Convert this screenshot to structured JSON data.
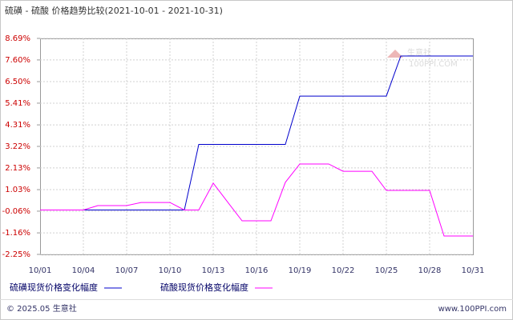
{
  "chart_data": {
    "type": "line",
    "title": "硫磺 - 硫酸 价格趋势比较(2021-10-01 - 2021-10-31)",
    "categories": [
      "10/01",
      null,
      null,
      "10/04",
      null,
      null,
      "10/07",
      null,
      null,
      "10/10",
      null,
      null,
      "10/13",
      null,
      null,
      "10/16",
      null,
      null,
      "10/19",
      null,
      null,
      "10/22",
      null,
      null,
      "10/25",
      null,
      null,
      "10/28",
      null,
      null,
      "10/31"
    ],
    "series": [
      {
        "name": "硫磺现货价格变化幅度",
        "color": "#0000cc",
        "values": [
          0,
          0,
          0,
          0,
          0,
          0,
          0,
          0,
          0,
          0,
          0,
          3.32,
          3.32,
          3.32,
          3.32,
          3.32,
          3.32,
          3.32,
          5.77,
          5.77,
          5.77,
          5.77,
          5.77,
          5.77,
          5.77,
          7.8,
          7.8,
          7.8,
          7.8,
          7.8,
          7.8
        ]
      },
      {
        "name": "硫酸现货价格变化幅度",
        "color": "#ff00ff",
        "values": [
          0,
          0,
          0,
          0,
          0.22,
          0.22,
          0.22,
          0.38,
          0.38,
          0.38,
          0,
          0,
          1.36,
          0.4,
          -0.55,
          -0.55,
          -0.55,
          1.4,
          2.33,
          2.33,
          2.33,
          1.96,
          1.96,
          1.96,
          0.99,
          0.99,
          0.99,
          0.99,
          -1.32,
          -1.32,
          -1.32
        ]
      }
    ],
    "ylim": [
      -2.25,
      8.69
    ],
    "yticks": [
      {
        "value": 8.69,
        "label": "8.69%"
      },
      {
        "value": 7.6,
        "label": "7.60%"
      },
      {
        "value": 6.5,
        "label": "6.50%"
      },
      {
        "value": 5.41,
        "label": "5.41%"
      },
      {
        "value": 4.31,
        "label": "4.31%"
      },
      {
        "value": 3.22,
        "label": "3.22%"
      },
      {
        "value": 2.13,
        "label": "2.13%"
      },
      {
        "value": 1.03,
        "label": "1.03%"
      },
      {
        "value": -0.06,
        "label": "-0.06%"
      },
      {
        "value": -1.16,
        "label": "-1.16%"
      },
      {
        "value": -2.25,
        "label": "-2.25%"
      }
    ],
    "grid": true,
    "watermark": {
      "name": "生意社",
      "url": "100PPI.COM"
    }
  },
  "footer": {
    "copyright": "© 2025.05 生意社",
    "url": "www.100PPI.com"
  }
}
